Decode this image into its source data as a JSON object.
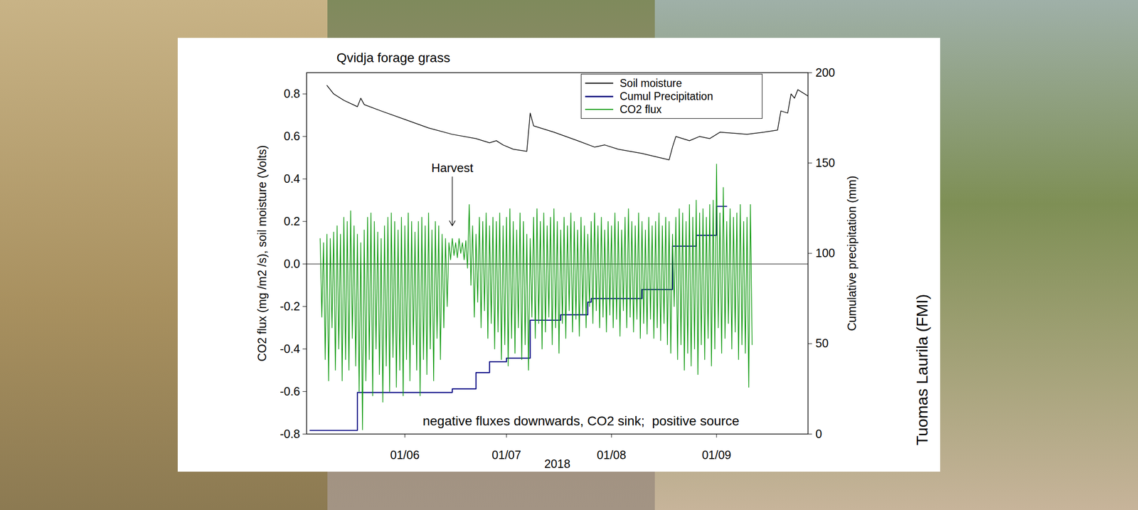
{
  "chart_data": {
    "type": "line",
    "title": "Qvidja forage grass",
    "x_label": "2018",
    "y_label": "CO2 flux (mg /m2 /s), soil moisture (Volts)",
    "y2_label": "Cumulative precipitation (mm)",
    "xlim": [
      "2018-05-03",
      "2018-09-28"
    ],
    "xticks": [
      {
        "value": "2018-06-01",
        "label": "01/06"
      },
      {
        "value": "2018-07-01",
        "label": "01/07"
      },
      {
        "value": "2018-08-01",
        "label": "01/08"
      },
      {
        "value": "2018-09-01",
        "label": "01/09"
      }
    ],
    "ylim": [
      -0.8,
      0.9
    ],
    "yticks": [
      -0.8,
      -0.6,
      -0.4,
      -0.2,
      {
        "value": 0,
        "label": "0.0"
      },
      0.2,
      0.4,
      0.6,
      0.8
    ],
    "y2lim": [
      0,
      200
    ],
    "y2ticks": [
      0,
      50,
      100,
      150,
      200
    ],
    "grid": false,
    "legend": "top-right",
    "hlines": [
      0
    ],
    "annotations": [
      {
        "text": "Harvest",
        "x": "2018-06-15",
        "y": 0.45,
        "arrow_to": 0.18
      },
      {
        "text": "negative fluxes downwards, CO2 sink;  positive source",
        "x": "2018-07-23",
        "y": -0.74
      }
    ],
    "series": [
      {
        "name": "Soil moisture",
        "color": "#000000",
        "axis": "y",
        "line_style": "solid",
        "x": [
          "2018-05-09",
          "2018-05-11",
          "2018-05-14",
          "2018-05-18",
          "2018-05-19",
          "2018-05-20",
          "2018-05-25",
          "2018-06-01",
          "2018-06-08",
          "2018-06-15",
          "2018-06-22",
          "2018-06-26",
          "2018-06-28",
          "2018-06-30",
          "2018-07-03",
          "2018-07-07",
          "2018-07-08",
          "2018-07-09",
          "2018-07-15",
          "2018-07-22",
          "2018-07-27",
          "2018-07-30",
          "2018-08-03",
          "2018-08-10",
          "2018-08-18",
          "2018-08-19",
          "2018-08-20",
          "2018-08-24",
          "2018-08-27",
          "2018-08-30",
          "2018-09-02",
          "2018-09-10",
          "2018-09-15",
          "2018-09-19",
          "2018-09-20",
          "2018-09-22",
          "2018-09-23",
          "2018-09-24",
          "2018-09-25",
          "2018-09-27",
          "2018-09-28"
        ],
        "values": [
          0.84,
          0.8,
          0.77,
          0.74,
          0.78,
          0.75,
          0.72,
          0.68,
          0.64,
          0.61,
          0.59,
          0.57,
          0.58,
          0.56,
          0.54,
          0.53,
          0.71,
          0.65,
          0.62,
          0.58,
          0.55,
          0.56,
          0.54,
          0.52,
          0.49,
          0.55,
          0.6,
          0.58,
          0.6,
          0.59,
          0.62,
          0.61,
          0.62,
          0.63,
          0.72,
          0.71,
          0.8,
          0.78,
          0.82,
          0.8,
          0.79
        ]
      },
      {
        "name": "Cumul Precipitation",
        "color": "#000080",
        "axis": "y2",
        "line_style": "step",
        "x": [
          "2018-05-04",
          "2018-05-18",
          "2018-06-15",
          "2018-06-22",
          "2018-06-26",
          "2018-07-01",
          "2018-07-08",
          "2018-07-17",
          "2018-07-25",
          "2018-07-26",
          "2018-08-10",
          "2018-08-19",
          "2018-08-26",
          "2018-09-01",
          "2018-09-04"
        ],
        "values": [
          2,
          23,
          25,
          34,
          40,
          42,
          63,
          66,
          73,
          75,
          80,
          104,
          110,
          126,
          126
        ]
      },
      {
        "name": "CO2 flux",
        "color": "#109a10",
        "axis": "y",
        "line_style": "solid",
        "x": [
          "2018-05-07T00:00",
          "2018-05-07T12:00",
          "2018-05-08T00:00",
          "2018-05-08T12:00",
          "2018-05-09T00:00",
          "2018-05-09T12:00",
          "2018-05-10T00:00",
          "2018-05-10T12:00",
          "2018-05-11T00:00",
          "2018-05-11T12:00",
          "2018-05-12T00:00",
          "2018-05-12T12:00",
          "2018-05-13T00:00",
          "2018-05-13T12:00",
          "2018-05-14T00:00",
          "2018-05-14T12:00",
          "2018-05-15T00:00",
          "2018-05-15T12:00",
          "2018-05-16T00:00",
          "2018-05-16T12:00",
          "2018-05-17T00:00",
          "2018-05-17T12:00",
          "2018-05-18T00:00",
          "2018-05-18T12:00",
          "2018-05-19T00:00",
          "2018-05-19T12:00",
          "2018-05-20T00:00",
          "2018-05-20T12:00",
          "2018-05-21T00:00",
          "2018-05-21T12:00",
          "2018-05-22T00:00",
          "2018-05-22T12:00",
          "2018-05-23T00:00",
          "2018-05-23T12:00",
          "2018-05-24T00:00",
          "2018-05-24T12:00",
          "2018-05-25T00:00",
          "2018-05-25T12:00",
          "2018-05-26T00:00",
          "2018-05-26T12:00",
          "2018-05-27T00:00",
          "2018-05-27T12:00",
          "2018-05-28T00:00",
          "2018-05-28T12:00",
          "2018-05-29T00:00",
          "2018-05-29T12:00",
          "2018-05-30T00:00",
          "2018-05-30T12:00",
          "2018-05-31T00:00",
          "2018-05-31T12:00",
          "2018-06-01T00:00",
          "2018-06-01T12:00",
          "2018-06-02T00:00",
          "2018-06-02T12:00",
          "2018-06-03T00:00",
          "2018-06-03T12:00",
          "2018-06-04T00:00",
          "2018-06-04T12:00",
          "2018-06-05T00:00",
          "2018-06-05T12:00",
          "2018-06-06T00:00",
          "2018-06-06T12:00",
          "2018-06-07T00:00",
          "2018-06-07T12:00",
          "2018-06-08T00:00",
          "2018-06-08T12:00",
          "2018-06-09T00:00",
          "2018-06-09T12:00",
          "2018-06-10T00:00",
          "2018-06-10T12:00",
          "2018-06-11T00:00",
          "2018-06-11T12:00",
          "2018-06-12T00:00",
          "2018-06-12T12:00",
          "2018-06-13T00:00",
          "2018-06-13T12:00",
          "2018-06-14T00:00",
          "2018-06-14T12:00",
          "2018-06-15T00:00",
          "2018-06-15T12:00",
          "2018-06-16T00:00",
          "2018-06-16T12:00",
          "2018-06-17T00:00",
          "2018-06-17T12:00",
          "2018-06-18T00:00",
          "2018-06-18T12:00",
          "2018-06-19T00:00",
          "2018-06-19T12:00",
          "2018-06-20T00:00",
          "2018-06-20T12:00",
          "2018-06-21T00:00",
          "2018-06-21T12:00",
          "2018-06-22T00:00",
          "2018-06-22T12:00",
          "2018-06-23T00:00",
          "2018-06-23T12:00",
          "2018-06-24T00:00",
          "2018-06-24T12:00",
          "2018-06-25T00:00",
          "2018-06-25T12:00",
          "2018-06-26T00:00",
          "2018-06-26T12:00",
          "2018-06-27T00:00",
          "2018-06-27T12:00",
          "2018-06-28T00:00",
          "2018-06-28T12:00",
          "2018-06-29T00:00",
          "2018-06-29T12:00",
          "2018-06-30T00:00",
          "2018-06-30T12:00",
          "2018-07-01T00:00",
          "2018-07-01T12:00",
          "2018-07-02T00:00",
          "2018-07-02T12:00",
          "2018-07-03T00:00",
          "2018-07-03T12:00",
          "2018-07-04T00:00",
          "2018-07-04T12:00",
          "2018-07-05T00:00",
          "2018-07-05T12:00",
          "2018-07-06T00:00",
          "2018-07-06T12:00",
          "2018-07-07T00:00",
          "2018-07-07T12:00",
          "2018-07-08T00:00",
          "2018-07-08T12:00",
          "2018-07-09T00:00",
          "2018-07-09T12:00",
          "2018-07-10T00:00",
          "2018-07-10T12:00",
          "2018-07-11T00:00",
          "2018-07-11T12:00",
          "2018-07-12T00:00",
          "2018-07-12T12:00",
          "2018-07-13T00:00",
          "2018-07-13T12:00",
          "2018-07-14T00:00",
          "2018-07-14T12:00",
          "2018-07-15T00:00",
          "2018-07-15T12:00",
          "2018-07-16T00:00",
          "2018-07-16T12:00",
          "2018-07-17T00:00",
          "2018-07-17T12:00",
          "2018-07-18T00:00",
          "2018-07-18T12:00",
          "2018-07-19T00:00",
          "2018-07-19T12:00",
          "2018-07-20T00:00",
          "2018-07-20T12:00",
          "2018-07-21T00:00",
          "2018-07-21T12:00",
          "2018-07-22T00:00",
          "2018-07-22T12:00",
          "2018-07-23T00:00",
          "2018-07-23T12:00",
          "2018-07-24T00:00",
          "2018-07-24T12:00",
          "2018-07-25T00:00",
          "2018-07-25T12:00",
          "2018-07-26T00:00",
          "2018-07-26T12:00",
          "2018-07-27T00:00",
          "2018-07-27T12:00",
          "2018-07-28T00:00",
          "2018-07-28T12:00",
          "2018-07-29T00:00",
          "2018-07-29T12:00",
          "2018-07-30T00:00",
          "2018-07-30T12:00",
          "2018-07-31T00:00",
          "2018-07-31T12:00",
          "2018-08-01T00:00",
          "2018-08-01T12:00",
          "2018-08-02T00:00",
          "2018-08-02T12:00",
          "2018-08-03T00:00",
          "2018-08-03T12:00",
          "2018-08-04T00:00",
          "2018-08-04T12:00",
          "2018-08-05T00:00",
          "2018-08-05T12:00",
          "2018-08-06T00:00",
          "2018-08-06T12:00",
          "2018-08-07T00:00",
          "2018-08-07T12:00",
          "2018-08-08T00:00",
          "2018-08-08T12:00",
          "2018-08-09T00:00",
          "2018-08-09T12:00",
          "2018-08-10T00:00",
          "2018-08-10T12:00",
          "2018-08-11T00:00",
          "2018-08-11T12:00",
          "2018-08-12T00:00",
          "2018-08-12T12:00",
          "2018-08-13T00:00",
          "2018-08-13T12:00",
          "2018-08-14T00:00",
          "2018-08-14T12:00",
          "2018-08-15T00:00",
          "2018-08-15T12:00",
          "2018-08-16T00:00",
          "2018-08-16T12:00",
          "2018-08-17T00:00",
          "2018-08-17T12:00",
          "2018-08-18T00:00",
          "2018-08-18T12:00",
          "2018-08-19T00:00",
          "2018-08-19T12:00",
          "2018-08-20T00:00",
          "2018-08-20T12:00",
          "2018-08-21T00:00",
          "2018-08-21T12:00",
          "2018-08-22T00:00",
          "2018-08-22T12:00",
          "2018-08-23T00:00",
          "2018-08-23T12:00",
          "2018-08-24T00:00",
          "2018-08-24T12:00",
          "2018-08-25T00:00",
          "2018-08-25T12:00",
          "2018-08-26T00:00",
          "2018-08-26T12:00",
          "2018-08-27T00:00",
          "2018-08-27T12:00",
          "2018-08-28T00:00",
          "2018-08-28T12:00",
          "2018-08-29T00:00",
          "2018-08-29T12:00",
          "2018-08-30T00:00",
          "2018-08-30T12:00",
          "2018-08-31T00:00",
          "2018-08-31T12:00",
          "2018-09-01T00:00",
          "2018-09-01T12:00",
          "2018-09-02T00:00",
          "2018-09-02T12:00",
          "2018-09-03T00:00",
          "2018-09-03T12:00",
          "2018-09-04T00:00",
          "2018-09-04T12:00",
          "2018-09-05T00:00",
          "2018-09-05T12:00",
          "2018-09-06T00:00",
          "2018-09-06T12:00",
          "2018-09-07T00:00",
          "2018-09-07T12:00",
          "2018-09-08T00:00",
          "2018-09-08T12:00",
          "2018-09-09T00:00",
          "2018-09-09T12:00",
          "2018-09-10T00:00",
          "2018-09-10T12:00",
          "2018-09-11T00:00",
          "2018-09-11T12:00"
        ],
        "values": [
          0.12,
          -0.25,
          0.1,
          -0.45,
          0.14,
          -0.55,
          0.12,
          -0.3,
          0.15,
          -0.5,
          0.18,
          -0.4,
          0.14,
          -0.55,
          0.22,
          -0.45,
          0.2,
          -0.5,
          0.25,
          -0.35,
          0.18,
          -0.48,
          0.14,
          -0.6,
          0.1,
          -0.78,
          0.16,
          -0.55,
          0.22,
          -0.45,
          0.24,
          -0.62,
          0.2,
          -0.4,
          0.15,
          -0.52,
          0.12,
          -0.65,
          0.18,
          -0.48,
          0.22,
          -0.6,
          0.24,
          -0.44,
          0.2,
          -0.58,
          0.16,
          -0.5,
          0.22,
          -0.62,
          0.18,
          -0.45,
          0.24,
          -0.55,
          0.2,
          -0.38,
          0.15,
          -0.5,
          0.2,
          -0.62,
          0.22,
          -0.45,
          0.18,
          -0.52,
          0.24,
          -0.4,
          0.16,
          -0.55,
          0.2,
          -0.35,
          0.18,
          -0.45,
          0.14,
          -0.3,
          0.12,
          -0.2,
          0.1,
          0.02,
          0.12,
          0.04,
          0.1,
          0.03,
          0.12,
          0.05,
          0.1,
          0.02,
          0.11,
          -0.02,
          0.28,
          -0.1,
          0.18,
          -0.25,
          0.14,
          -0.18,
          0.22,
          -0.3,
          0.2,
          -0.22,
          0.24,
          -0.35,
          0.18,
          -0.28,
          0.22,
          -0.4,
          0.2,
          -0.32,
          0.24,
          -0.45,
          0.18,
          -0.38,
          0.22,
          -0.48,
          0.26,
          -0.35,
          0.2,
          -0.42,
          0.16,
          -0.3,
          0.24,
          -0.45,
          0.2,
          -0.38,
          0.14,
          -0.5,
          0.12,
          -0.25,
          0.22,
          -0.35,
          0.26,
          -0.28,
          0.2,
          -0.4,
          0.24,
          -0.32,
          0.18,
          -0.25,
          0.22,
          -0.38,
          0.26,
          -0.3,
          0.2,
          -0.42,
          0.16,
          -0.28,
          0.22,
          -0.35,
          0.18,
          -0.22,
          0.24,
          -0.32,
          0.2,
          -0.26,
          0.16,
          -0.34,
          0.22,
          -0.24,
          0.18,
          -0.3,
          0.14,
          -0.2,
          0.2,
          -0.28,
          0.24,
          -0.22,
          0.18,
          -0.3,
          0.22,
          -0.25,
          0.16,
          -0.32,
          0.2,
          -0.24,
          0.18,
          -0.3,
          0.24,
          -0.26,
          0.2,
          -0.34,
          0.16,
          -0.22,
          0.22,
          -0.3,
          0.26,
          -0.25,
          0.2,
          -0.32,
          0.18,
          -0.26,
          0.24,
          -0.35,
          0.2,
          -0.28,
          0.16,
          -0.33,
          0.22,
          -0.26,
          0.18,
          -0.35,
          0.2,
          -0.3,
          0.24,
          -0.36,
          0.18,
          -0.28,
          0.22,
          -0.38,
          0.2,
          -0.42,
          0.14,
          -0.2,
          0.22,
          -0.45,
          0.26,
          -0.38,
          0.24,
          -0.5,
          0.2,
          -0.42,
          0.28,
          -0.48,
          0.22,
          -0.4,
          0.3,
          -0.52,
          0.24,
          -0.38,
          0.26,
          -0.45,
          0.22,
          -0.35,
          0.28,
          -0.48,
          0.3,
          -0.4,
          0.47,
          -0.3,
          0.24,
          -0.42,
          0.36,
          -0.35,
          0.2,
          -0.28,
          0.26,
          -0.4,
          0.22,
          -0.32,
          0.24,
          -0.45,
          0.28,
          -0.38,
          0.2,
          -0.42,
          0.22,
          -0.58,
          0.28,
          -0.38
        ]
      }
    ]
  },
  "credit": "Tuomas Laurila (FMI)"
}
